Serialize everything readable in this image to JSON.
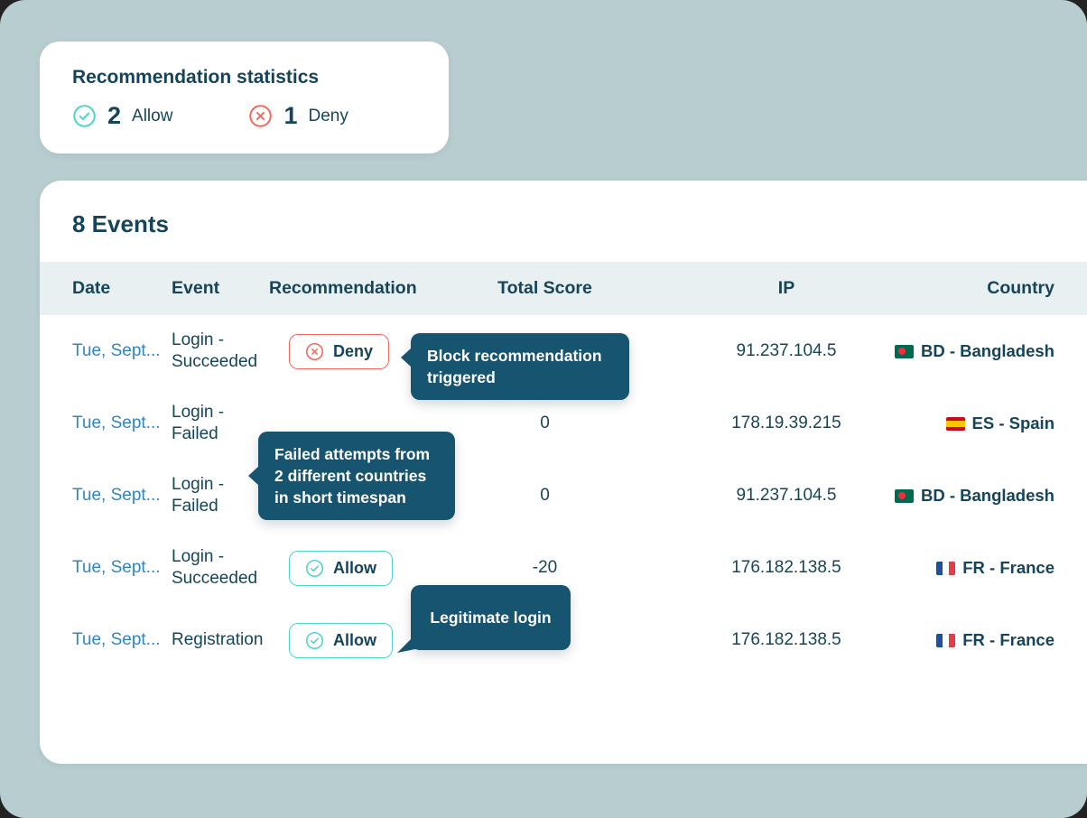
{
  "colors": {
    "background": "#b8cdcf",
    "navy_text": "#16455a",
    "link_blue": "#2e86c4",
    "accent_teal": "#4fd4cb",
    "accent_red": "#f3695c",
    "tooltip_bg": "#175470",
    "header_band": "#e9f0f2"
  },
  "stats_card": {
    "title": "Recommendation statistics",
    "allow": {
      "count": "2",
      "label": "Allow"
    },
    "deny": {
      "count": "1",
      "label": "Deny"
    }
  },
  "events_card": {
    "title": "8 Events",
    "columns": [
      "Date",
      "Event",
      "Recommendation",
      "Total Score",
      "IP",
      "Country"
    ],
    "rows": [
      {
        "date": "Tue, Sept...",
        "event": "Login - Succeeded",
        "recommendation": "Deny",
        "rec_type": "deny",
        "score": "",
        "ip": "91.237.104.5",
        "country": "BD - Bangladesh",
        "flag": "bd"
      },
      {
        "date": "Tue, Sept...",
        "event": "Login - Failed",
        "recommendation": "",
        "rec_type": "none",
        "score": "0",
        "ip": "178.19.39.215",
        "country": "ES - Spain",
        "flag": "es"
      },
      {
        "date": "Tue, Sept...",
        "event": "Login - Failed",
        "recommendation": "",
        "rec_type": "none",
        "score": "0",
        "ip": "91.237.104.5",
        "country": "BD - Bangladesh",
        "flag": "bd"
      },
      {
        "date": "Tue, Sept...",
        "event": "Login - Succeeded",
        "recommendation": "Allow",
        "rec_type": "allow",
        "score": "-20",
        "ip": "176.182.138.5",
        "country": "FR - France",
        "flag": "fr"
      },
      {
        "date": "Tue, Sept...",
        "event": "Registration",
        "recommendation": "Allow",
        "rec_type": "allow",
        "score": "",
        "ip": "176.182.138.5",
        "country": "FR - France",
        "flag": "fr"
      }
    ]
  },
  "tooltips": {
    "block": {
      "text": "Block recommendation triggered"
    },
    "failed": {
      "text": "Failed attempts from 2 different countries in short timespan"
    },
    "legit": {
      "text": "Legitimate login"
    }
  }
}
